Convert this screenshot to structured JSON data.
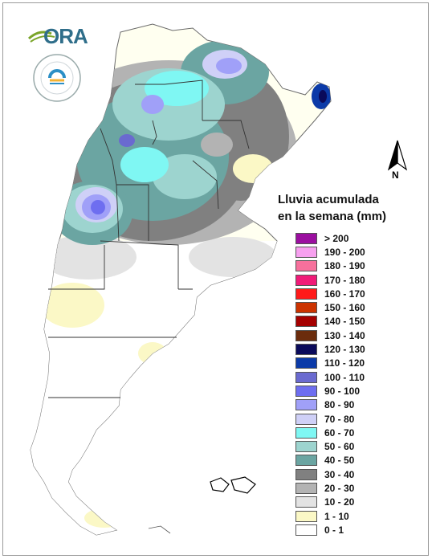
{
  "logo": {
    "brand_text": "ORA",
    "seal_text": "SERVICIO METEOROLÓGICO NACIONAL · ARGENTINA"
  },
  "north_arrow": {
    "label": "N"
  },
  "legend": {
    "title_line1": "Lluvia acumulada",
    "title_line2": "en la semana (mm)",
    "items": [
      {
        "label": "> 200",
        "color": "#9b0fa0"
      },
      {
        "label": "190 - 200",
        "color": "#f7a0ef"
      },
      {
        "label": "180 - 190",
        "color": "#f7709c"
      },
      {
        "label": "170 - 180",
        "color": "#f01b78"
      },
      {
        "label": "160 - 170",
        "color": "#ff1a1a"
      },
      {
        "label": "150 - 160",
        "color": "#cc3300"
      },
      {
        "label": "140 - 150",
        "color": "#a50000"
      },
      {
        "label": "130 - 140",
        "color": "#6b2c0c"
      },
      {
        "label": "120 - 130",
        "color": "#0a0a5a"
      },
      {
        "label": "110 - 120",
        "color": "#0b3aa8"
      },
      {
        "label": "100 - 110",
        "color": "#6a6ad0"
      },
      {
        "label": "90 - 100",
        "color": "#6e6ef0"
      },
      {
        "label": "80 - 90",
        "color": "#a0a0f8"
      },
      {
        "label": "70 - 80",
        "color": "#cfd0f7"
      },
      {
        "label": "60 - 70",
        "color": "#7ff7f3"
      },
      {
        "label": "50 - 60",
        "color": "#9dd4cf"
      },
      {
        "label": "40 - 50",
        "color": "#6ba5a2"
      },
      {
        "label": "30 - 40",
        "color": "#808080"
      },
      {
        "label": "20 - 30",
        "color": "#b3b3b3"
      },
      {
        "label": "10 - 20",
        "color": "#e3e3e3"
      },
      {
        "label": "1 - 10",
        "color": "#fbf8c6"
      },
      {
        "label": "0 - 1",
        "color": "#ffffff"
      }
    ]
  }
}
